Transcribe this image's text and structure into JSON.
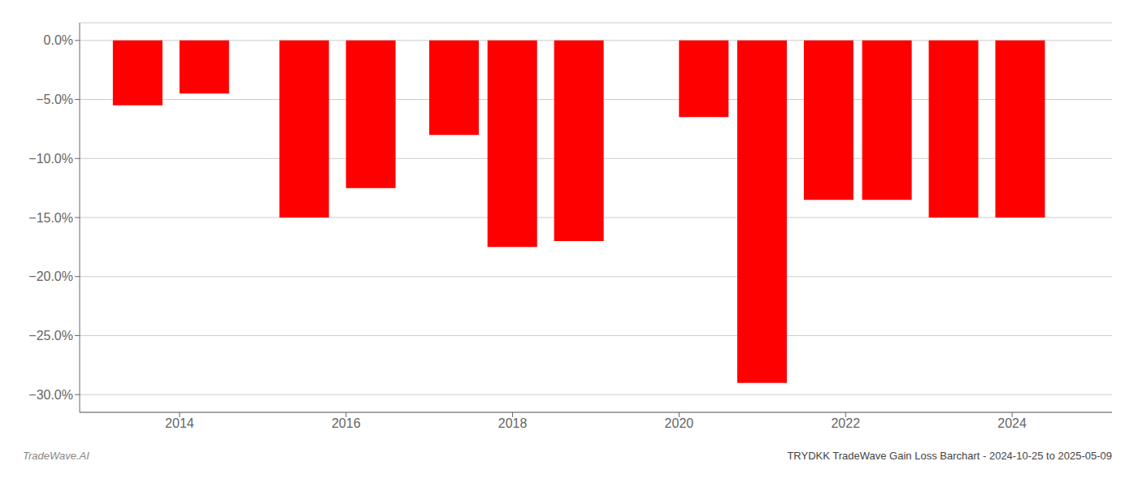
{
  "chart_data": {
    "type": "bar",
    "title": "TRYDKK TradeWave Gain Loss Barchart - 2024-10-25 to 2025-05-09",
    "annotations": [
      "TradeWave.AI"
    ],
    "x": [
      2013.5,
      2014.3,
      2015.5,
      2016.3,
      2017.3,
      2018.0,
      2018.8,
      2020.3,
      2021.0,
      2021.8,
      2022.5,
      2023.3,
      2024.1
    ],
    "values": [
      -5.5,
      -4.5,
      -15.0,
      -12.5,
      -8.0,
      -17.5,
      -17.0,
      -6.5,
      -29.0,
      -13.5,
      -13.5,
      -15.0,
      -15.0
    ],
    "color": "#ff0000",
    "xlim": [
      2012.8,
      2025.2
    ],
    "xticks": [
      2014,
      2016,
      2018,
      2020,
      2022,
      2024
    ],
    "ylim": [
      -31.5,
      1.5
    ],
    "yticks": [
      {
        "value": 0.0,
        "label": "0.0%"
      },
      {
        "value": -5.0,
        "label": "−5.0%"
      },
      {
        "value": -10.0,
        "label": "−10.0%"
      },
      {
        "value": -15.0,
        "label": "−15.0%"
      },
      {
        "value": -20.0,
        "label": "−20.0%"
      },
      {
        "value": -25.0,
        "label": "−25.0%"
      },
      {
        "value": -30.0,
        "label": "−30.0%"
      }
    ],
    "grid": true
  }
}
